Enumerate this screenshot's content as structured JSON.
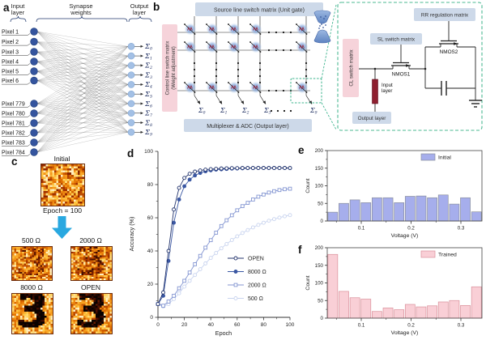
{
  "panel_letters": {
    "a": "a",
    "b": "b",
    "c": "c",
    "d": "d",
    "e": "e",
    "f": "f"
  },
  "panel_a": {
    "headers": {
      "input": [
        "Input",
        "layer"
      ],
      "synapse": [
        "Synapse",
        "weights"
      ],
      "output": [
        "Output",
        "layer"
      ]
    },
    "input_labels": [
      "Pixel 1",
      "Pixel 2",
      "Pixel 3",
      "Pixel 4",
      "Pixel 5",
      "Pixel 6",
      "Pixel 779",
      "Pixel 780",
      "Pixel 781",
      "Pixel 782",
      "Pixel 783",
      "Pixel 784"
    ],
    "sum_symbol": "Σ",
    "sum_subscripts": [
      "0",
      "1",
      "2",
      "3",
      "4",
      "5",
      "6",
      "7",
      "8",
      "9"
    ]
  },
  "panel_b": {
    "top_box": "Source line switch matrix (Unit gate)",
    "left_box": [
      "Control line switch matrix",
      "(Weight adjustment)"
    ],
    "bottom_box": "Multiplexer & ADC (Output layer)",
    "sum_symbol": "Σ",
    "sum_subscripts": [
      "0",
      "1",
      "2",
      "3",
      "9"
    ]
  },
  "inset": {
    "rr_box": "RR regulation matrix",
    "sl_box": "SL switch matrix",
    "cl_box": "CL switch matrix",
    "nmos1": "NMOS1",
    "nmos2": "NMOS2",
    "input_layer": [
      "Input",
      "layer"
    ],
    "output_box": "Output layer"
  },
  "panel_c": {
    "initial_label": "Initial",
    "epoch_label": "Epoch = 100",
    "maps": [
      {
        "label": "500 Ω"
      },
      {
        "label": "2000 Ω"
      },
      {
        "label": "8000 Ω"
      },
      {
        "label": "OPEN"
      }
    ]
  },
  "chart_data": [
    {
      "id": "accuracy-vs-epoch",
      "type": "line",
      "xlabel": "Epoch",
      "ylabel": "Accuracy (%)",
      "xlim": [
        0,
        100
      ],
      "ylim": [
        0,
        100
      ],
      "xticks": [
        0,
        20,
        40,
        60,
        80,
        100
      ],
      "yticks": [
        0,
        20,
        40,
        60,
        80,
        100
      ],
      "x_start": 0,
      "x_step": 4,
      "legend_position": "lower right",
      "series": [
        {
          "name": "OPEN",
          "marker": "circle-open",
          "color": "#24356e",
          "values": [
            8,
            15,
            40,
            65,
            78,
            84,
            86.5,
            87.8,
            88.5,
            89,
            89.3,
            89.5,
            89.7,
            89.8,
            89.9,
            89.9,
            90,
            90,
            90,
            90,
            90,
            90,
            90,
            90,
            90,
            90
          ]
        },
        {
          "name": "8000 Ω",
          "marker": "circle-filled",
          "color": "#3a57a2",
          "values": [
            8,
            13,
            34,
            57,
            71,
            79,
            83,
            85.5,
            87,
            88,
            88.6,
            89,
            89.2,
            89.4,
            89.6,
            89.7,
            89.8,
            89.9,
            89.9,
            90,
            90,
            90,
            90,
            90,
            90,
            89.9
          ]
        },
        {
          "name": "2000 Ω",
          "marker": "square-open",
          "color": "#8496d2",
          "values": [
            8,
            7,
            9.5,
            13,
            17.5,
            22,
            27,
            32,
            37,
            42,
            46.5,
            51,
            55,
            58.5,
            61.5,
            64.5,
            67,
            69,
            71,
            72.7,
            74,
            75.2,
            76,
            76.7,
            77.2,
            77.5
          ]
        },
        {
          "name": "500 Ω",
          "marker": "circle-open",
          "color": "#c9d4ef",
          "values": [
            8,
            6.5,
            8,
            11,
            14.5,
            18.5,
            22,
            25.5,
            29,
            32.5,
            35.8,
            38.8,
            41.6,
            44.2,
            46.6,
            48.8,
            50.8,
            52.6,
            54.2,
            55.7,
            57,
            58.2,
            59.2,
            60.1,
            60.9,
            61.6
          ]
        }
      ]
    },
    {
      "id": "initial-histogram",
      "type": "bar",
      "legend": "Initial",
      "xlabel": "Voltage (V)",
      "ylabel": "Count",
      "ylim": [
        0,
        200
      ],
      "yticks": [
        0,
        50,
        100,
        150,
        200
      ],
      "xticks": [
        0.1,
        0.2,
        0.3
      ],
      "bin_start": 0.032,
      "bin_width": 0.022,
      "color": "#a6aeec",
      "border": "#8a8f9d",
      "values": [
        25,
        50,
        60,
        52,
        66,
        66,
        52,
        70,
        71,
        66,
        74,
        48,
        66,
        26
      ]
    },
    {
      "id": "trained-histogram",
      "type": "bar",
      "legend": "Trained",
      "xlabel": "Voltage (V)",
      "ylabel": "Count",
      "ylim": [
        0,
        200
      ],
      "yticks": [
        0,
        50,
        100,
        150,
        200
      ],
      "xticks": [
        0.1,
        0.2,
        0.3
      ],
      "bin_start": 0.032,
      "bin_width": 0.022,
      "color": "#f9cfd6",
      "border": "#d98f9a",
      "values": [
        181,
        76,
        58,
        54,
        19,
        29,
        24,
        39,
        32,
        35,
        46,
        50,
        36,
        89
      ]
    }
  ],
  "colors": {
    "box_blue": "#cdd9e9",
    "box_pink": "#f6d3da",
    "inset_border": "#4bb892",
    "node_dark": "#34549e",
    "node_light": "#a3c0e5",
    "arrow_blue": "#29a8e0",
    "resistor_red": "#8e1f2f"
  }
}
